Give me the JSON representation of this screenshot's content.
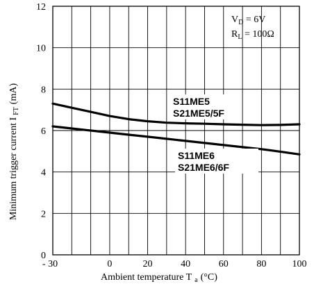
{
  "chart_data": {
    "type": "line",
    "xlabel": {
      "main": "Ambient temperature T",
      "sub": "a",
      "unit": "(°C)"
    },
    "ylabel": {
      "main": "Minimum trigger current I",
      "sub": "FT",
      "unit": "(mA)"
    },
    "xlim": [
      -30,
      100
    ],
    "ylim": [
      0,
      12
    ],
    "x_ticks": [
      "- 30",
      "0",
      "20",
      "40",
      "60",
      "80",
      "100"
    ],
    "y_ticks": [
      "0",
      "2",
      "4",
      "6",
      "8",
      "10",
      "12"
    ],
    "conditions": [
      {
        "main": "V",
        "sub": "D",
        "rest": " = 6V"
      },
      {
        "main": "R",
        "sub": "L",
        "rest": " = 100Ω"
      }
    ],
    "grid": true,
    "series": [
      {
        "labels": [
          "S11ME5",
          "S21ME5/5F"
        ],
        "x": [
          -30,
          -20,
          -10,
          0,
          10,
          20,
          30,
          40,
          50,
          60,
          70,
          80,
          90,
          100
        ],
        "y": [
          7.3,
          7.1,
          6.9,
          6.7,
          6.55,
          6.45,
          6.38,
          6.35,
          6.33,
          6.3,
          6.28,
          6.26,
          6.27,
          6.3
        ]
      },
      {
        "labels": [
          "S11ME6",
          "S21ME6/6F"
        ],
        "x": [
          -30,
          -20,
          -10,
          0,
          10,
          20,
          30,
          40,
          50,
          60,
          70,
          80,
          90,
          100
        ],
        "y": [
          6.2,
          6.1,
          6.0,
          5.9,
          5.8,
          5.7,
          5.6,
          5.5,
          5.4,
          5.3,
          5.2,
          5.1,
          4.98,
          4.85
        ]
      }
    ]
  }
}
